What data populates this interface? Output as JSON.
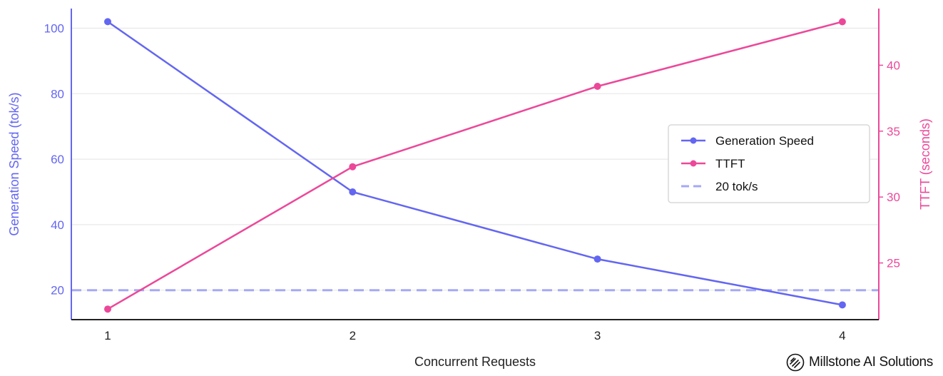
{
  "chart_data": {
    "type": "line",
    "x": [
      1,
      2,
      3,
      4
    ],
    "xlabel": "Concurrent Requests",
    "x_ticks": [
      "1",
      "2",
      "3",
      "4"
    ],
    "y_left": {
      "label": "Generation Speed (tok/s)",
      "ylim": [
        11,
        106
      ],
      "ticks": [
        20,
        40,
        60,
        80,
        100
      ],
      "color": "#6366f1"
    },
    "y_right": {
      "label": "TTFT (seconds)",
      "ylim": [
        20.7,
        44.3
      ],
      "ticks": [
        25,
        30,
        35,
        40
      ],
      "color": "#ec4899"
    },
    "series": [
      {
        "name": "Generation Speed",
        "axis": "left",
        "color": "#6366f1",
        "values": [
          102,
          50,
          29.5,
          15.5
        ]
      },
      {
        "name": "TTFT",
        "axis": "right",
        "color": "#ec4899",
        "values": [
          21.5,
          32.3,
          38.4,
          43.3
        ]
      }
    ],
    "reference_lines": [
      {
        "name": "20 tok/s",
        "axis": "left",
        "value": 20,
        "color": "#a5a8f5",
        "style": "dashed"
      }
    ],
    "grid": "horizontal",
    "legend_position": "center-right"
  },
  "brand": {
    "name": "Millstone AI Solutions"
  }
}
